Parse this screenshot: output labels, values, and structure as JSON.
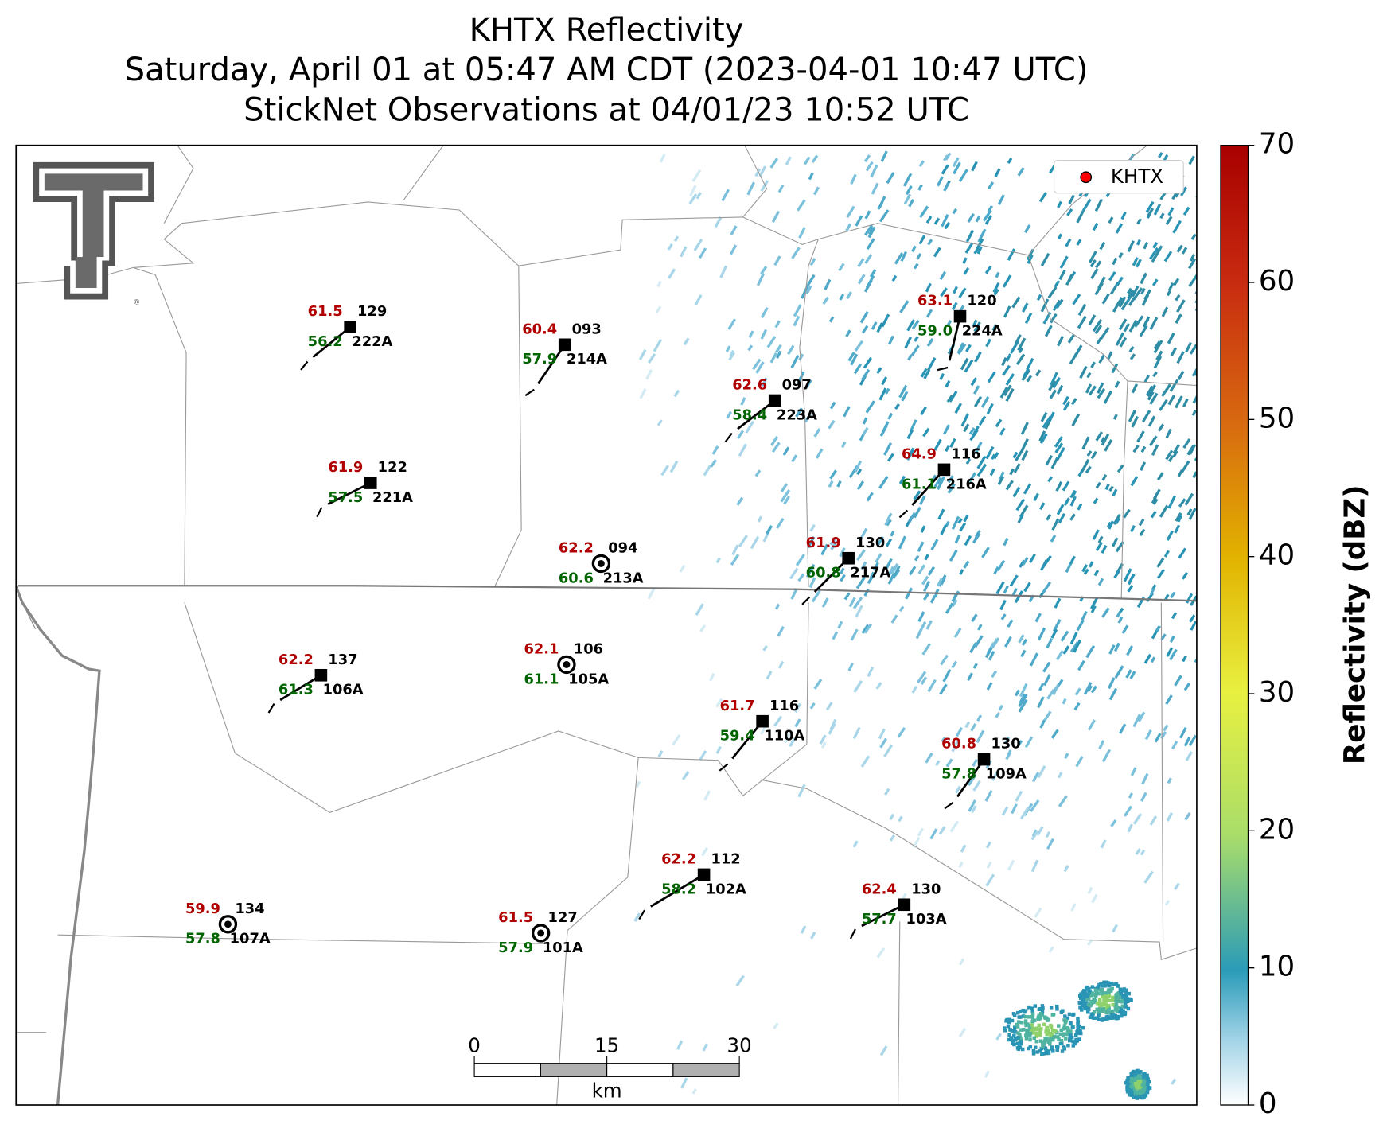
{
  "title": [
    "KHTX Reflectivity",
    "Saturday, April 01 at 05:47 AM CDT (2023-04-01 10:47 UTC)",
    "StickNet Observations at 04/01/23 10:52 UTC"
  ],
  "legend": {
    "name": "KHTX",
    "color": "#ff0000",
    "corner": "upper right"
  },
  "colorbar": {
    "label": "Reflectivity (dBZ)",
    "lim": [
      0,
      70
    ],
    "ticks": [
      0,
      10,
      20,
      30,
      40,
      50,
      60,
      70
    ]
  },
  "scalebar": {
    "ticks": [
      0,
      15,
      30
    ],
    "unit": "km"
  },
  "stations": [
    {
      "id": "222A",
      "temp": "61.5",
      "dewpoint": "56.2",
      "value": "129",
      "marker": "square"
    },
    {
      "id": "214A",
      "temp": "60.4",
      "dewpoint": "57.9",
      "value": "093",
      "marker": "square"
    },
    {
      "id": "223A",
      "temp": "62.6",
      "dewpoint": "58.4",
      "value": "097",
      "marker": "square"
    },
    {
      "id": "224A",
      "temp": "63.1",
      "dewpoint": "59.0",
      "value": "120",
      "marker": "square"
    },
    {
      "id": "221A",
      "temp": "61.9",
      "dewpoint": "57.5",
      "value": "122",
      "marker": "square"
    },
    {
      "id": "216A",
      "temp": "64.9",
      "dewpoint": "61.1",
      "value": "116",
      "marker": "square"
    },
    {
      "id": "213A",
      "temp": "62.2",
      "dewpoint": "60.6",
      "value": "094",
      "marker": "circle"
    },
    {
      "id": "217A",
      "temp": "61.9",
      "dewpoint": "60.8",
      "value": "130",
      "marker": "square"
    },
    {
      "id": "106A",
      "temp": "62.2",
      "dewpoint": "61.3",
      "value": "137",
      "marker": "square"
    },
    {
      "id": "105A",
      "temp": "62.1",
      "dewpoint": "61.1",
      "value": "106",
      "marker": "circle"
    },
    {
      "id": "110A",
      "temp": "61.7",
      "dewpoint": "59.4",
      "value": "116",
      "marker": "square"
    },
    {
      "id": "109A",
      "temp": "60.8",
      "dewpoint": "57.8",
      "value": "130",
      "marker": "square"
    },
    {
      "id": "102A",
      "temp": "62.2",
      "dewpoint": "58.2",
      "value": "112",
      "marker": "square"
    },
    {
      "id": "103A",
      "temp": "62.4",
      "dewpoint": "57.7",
      "value": "130",
      "marker": "square"
    },
    {
      "id": "107A",
      "temp": "59.9",
      "dewpoint": "57.8",
      "value": "134",
      "marker": "circle"
    },
    {
      "id": "101A",
      "temp": "61.5",
      "dewpoint": "57.9",
      "value": "127",
      "marker": "circle"
    }
  ]
}
